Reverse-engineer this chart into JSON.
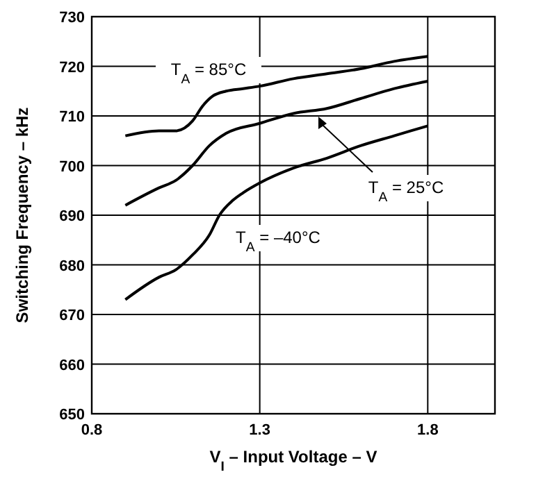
{
  "chart_data": {
    "type": "line",
    "xlabel": "V$_{I}$ – Input Voltage – V",
    "ylabel": "Switching Frequency – kHz",
    "xlim": [
      0.8,
      2.0
    ],
    "xticks": [
      0.8,
      1.3,
      1.8
    ],
    "ylim": [
      650,
      730
    ],
    "yticks": [
      650,
      660,
      670,
      680,
      690,
      700,
      710,
      720,
      730
    ],
    "grid": true,
    "line_style": "solid",
    "series": [
      {
        "color": "#000000",
        "x": [
          0.9,
          1.0,
          1.05,
          1.1,
          1.13,
          1.16,
          1.2,
          1.25,
          1.3,
          1.4,
          1.5,
          1.6,
          1.7,
          1.8
        ],
        "values": [
          706,
          707,
          707,
          709,
          712,
          714,
          715,
          715.5,
          716,
          717.5,
          718.5,
          719.5,
          721,
          722
        ]
      },
      {
        "color": "#000000",
        "x": [
          0.9,
          1.0,
          1.05,
          1.1,
          1.15,
          1.2,
          1.3,
          1.4,
          1.5,
          1.6,
          1.7,
          1.8
        ],
        "values": [
          692,
          695.5,
          697,
          700,
          704,
          706.5,
          708.5,
          710.5,
          711.5,
          713.5,
          715.5,
          717
        ]
      },
      {
        "color": "#000000",
        "x": [
          0.9,
          1.0,
          1.05,
          1.1,
          1.15,
          1.18,
          1.22,
          1.25,
          1.3,
          1.4,
          1.5,
          1.6,
          1.7,
          1.8
        ],
        "values": [
          673,
          677.5,
          679,
          682,
          686,
          690,
          693,
          694.5,
          696.5,
          699.5,
          701.5,
          704,
          706,
          708
        ]
      }
    ],
    "annotations": [
      "T$_{A}$ = 85°C",
      "T$_{A}$ = 25°C",
      "T$_{A}$ = –40°C"
    ]
  }
}
